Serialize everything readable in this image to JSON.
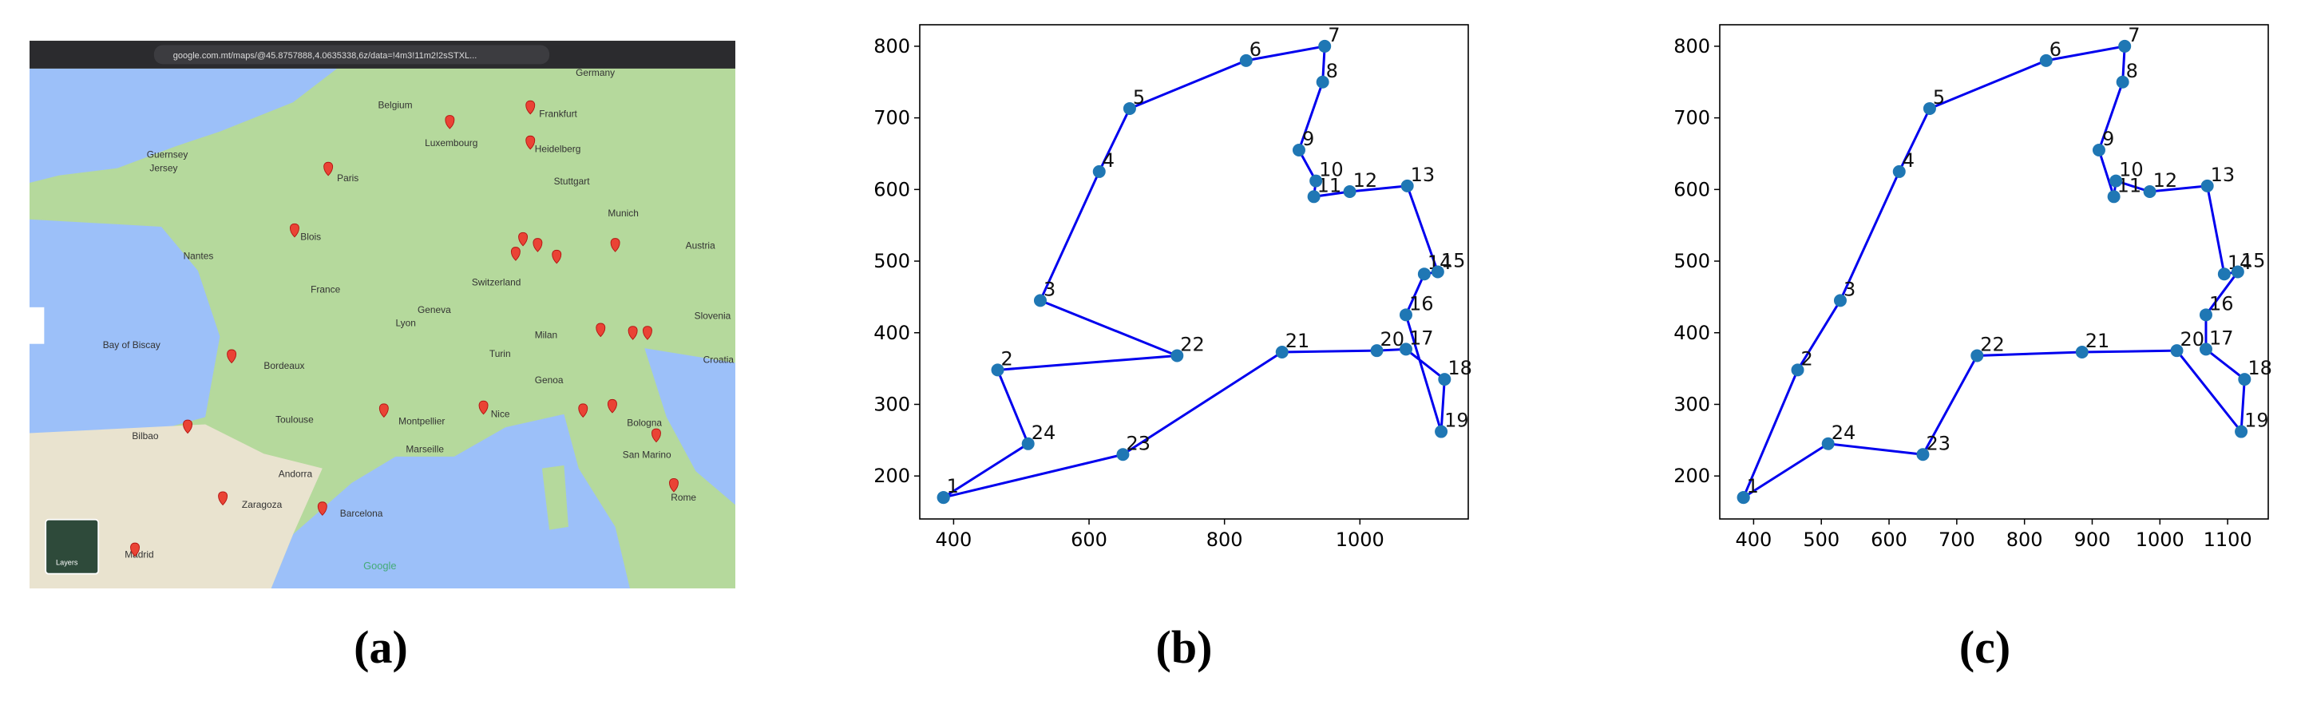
{
  "figure": {
    "map": {
      "url": "google.com.mt/maps/@45.8757888,4.0635338,6z/data=!4m3!11m2!2sSTXL...",
      "labels": [
        "Germany",
        "Belgium",
        "Luxembourg",
        "Frankfurt",
        "Heidelberg",
        "Stuttgart",
        "Munich",
        "Paris",
        "Guernsey",
        "Jersey",
        "Nantes",
        "Blois",
        "France",
        "Switzerland",
        "Austria",
        "Geneva",
        "Lyon",
        "Milan",
        "Turin",
        "Genoa",
        "Bordeaux",
        "Bay of Biscay",
        "Toulouse",
        "Montpellier",
        "Marseille",
        "Nice",
        "Bologna",
        "San Marino",
        "Andorra",
        "Bilbao",
        "Zaragoza",
        "Barcelona",
        "Madrid",
        "Rome",
        "Slovenia",
        "Croatia"
      ],
      "layers": "Layers",
      "brand": "Google"
    },
    "panel_labels": [
      "(a)",
      "(b)",
      "(c)"
    ]
  },
  "chart_data": [
    {
      "type": "line",
      "color": "#0000ee",
      "marker_color": "#1f77b4",
      "x": [
        385,
        650,
        885,
        1025,
        1068,
        1125,
        1120,
        1068,
        1095,
        1115,
        1070,
        985,
        932,
        935,
        910,
        945,
        948,
        832,
        660,
        615,
        528,
        730,
        465,
        510,
        385
      ],
      "series": [
        {
          "values": [
            170,
            230,
            373,
            375,
            377,
            335,
            262,
            425,
            482,
            485,
            605,
            597,
            590,
            612,
            655,
            750,
            800,
            780,
            713,
            625,
            445,
            368,
            348,
            245,
            170
          ]
        }
      ],
      "point_labels": [
        "1",
        "23",
        "21",
        "20",
        "17",
        "18",
        "19",
        "16",
        "14",
        "15",
        "13",
        "12",
        "11",
        "10",
        "9",
        "8",
        "7",
        "6",
        "5",
        "4",
        "3",
        "22",
        "2",
        "24",
        null
      ],
      "xlim": [
        350,
        1160
      ],
      "xticks": [
        400,
        600,
        800,
        1000
      ],
      "ylim": [
        140,
        830
      ],
      "yticks": [
        200,
        300,
        400,
        500,
        600,
        700,
        800
      ]
    },
    {
      "type": "line",
      "color": "#0000ee",
      "marker_color": "#1f77b4",
      "x": [
        385,
        465,
        528,
        615,
        660,
        832,
        948,
        945,
        910,
        932,
        935,
        985,
        1070,
        1095,
        1115,
        1068,
        1068,
        1125,
        1120,
        1025,
        885,
        730,
        650,
        510,
        385
      ],
      "series": [
        {
          "values": [
            170,
            348,
            445,
            625,
            713,
            780,
            800,
            750,
            655,
            590,
            612,
            597,
            605,
            482,
            485,
            425,
            377,
            335,
            262,
            375,
            373,
            368,
            230,
            245,
            170
          ]
        }
      ],
      "point_labels": [
        "1",
        "2",
        "3",
        "4",
        "5",
        "6",
        "7",
        "8",
        "9",
        "11",
        "10",
        "12",
        "13",
        "14",
        "15",
        "16",
        "17",
        "18",
        "19",
        "20",
        "21",
        "22",
        "23",
        "24",
        null
      ],
      "xlim": [
        350,
        1160
      ],
      "xticks": [
        400,
        500,
        600,
        700,
        800,
        900,
        1000,
        1100
      ],
      "ylim": [
        140,
        830
      ],
      "yticks": [
        200,
        300,
        400,
        500,
        600,
        700,
        800
      ]
    }
  ]
}
